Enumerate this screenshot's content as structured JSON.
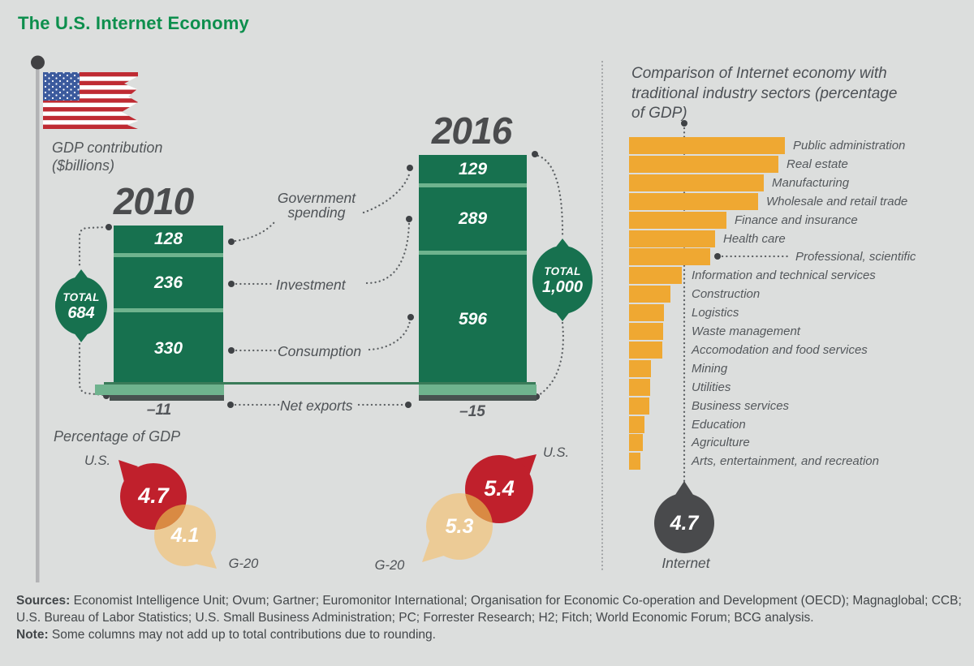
{
  "ui": {
    "title": "The U.S. Internet Economy",
    "gdp": {
      "label1": "GDP contribution",
      "label2": "($billions)",
      "total_word": "TOTAL",
      "y2010": {
        "year": "2010",
        "gov": "128",
        "inv": "236",
        "con": "330",
        "net": "–11",
        "total": "684"
      },
      "y2016": {
        "year": "2016",
        "gov": "129",
        "inv": "289",
        "con": "596",
        "net": "–15",
        "total": "1,000"
      },
      "flows": {
        "gov": "Government\nspending",
        "inv": "Investment",
        "con": "Consumption",
        "net": "Net exports"
      }
    },
    "pct": {
      "heading": "Percentage of GDP",
      "us": "U.S.",
      "g20": "G-20",
      "b2010": {
        "us": "4.7",
        "g20": "4.1"
      },
      "b2016": {
        "us": "5.4",
        "g20": "5.3"
      }
    },
    "sectors": {
      "title": "Comparison of Internet economy with traditional industry sectors (percentage of GDP)",
      "internet_value": "4.7",
      "internet_label": "Internet"
    },
    "footer": {
      "sources_label": "Sources:",
      "sources": " Economist Intelligence Unit; Ovum; Gartner; Euromonitor International; Organisation for Economic Co-operation and Development (OECD); Magnaglobal; CCB; U.S. Bureau of Labor Statistics; U.S. Small Business Administration; PC; Forrester Research; H2; Fitch; World Economic Forum; BCG analysis.",
      "note_label": "Note:",
      "note": " Some columns may not add up to total contributions due to rounding."
    }
  },
  "colors": {
    "title_green": "#0d8f4d",
    "bar_green": "#17714f",
    "separator_green": "#6fb38e",
    "axis_green": "#3a7b59",
    "net_exports_bar": "#485250",
    "sector_orange": "#efa832",
    "us_red": "#c0202c",
    "g20_tan": "#eccb96",
    "bubble_overlap": "#d98a43",
    "internet_charcoal": "#494a4c",
    "background": "#dcdedd"
  },
  "chart_data": [
    {
      "type": "bar",
      "subtype": "stacked-column",
      "title": "GDP contribution ($billions)",
      "unit": "$billions",
      "categories": [
        "2010",
        "2016"
      ],
      "series": [
        {
          "name": "Government spending",
          "values": [
            128,
            129
          ]
        },
        {
          "name": "Investment",
          "values": [
            236,
            289
          ]
        },
        {
          "name": "Consumption",
          "values": [
            330,
            596
          ]
        },
        {
          "name": "Net exports",
          "values": [
            -11,
            -15
          ]
        }
      ],
      "totals": [
        684,
        1000
      ]
    },
    {
      "type": "bar",
      "subtype": "horizontal",
      "title": "Comparison of Internet economy with traditional industry sectors (percentage of GDP)",
      "categories": [
        "Public administration",
        "Real estate",
        "Manufacturing",
        "Wholesale and retail trade",
        "Finance and insurance",
        "Health care",
        "Professional, scientific",
        "Information and technical services",
        "Construction",
        "Logistics",
        "Waste management",
        "Accomodation and food services",
        "Mining",
        "Utilities",
        "Business services",
        "Education",
        "Agriculture",
        "Arts, entertainment, and recreation"
      ],
      "values": [
        13.3,
        12.7,
        11.5,
        11.0,
        8.3,
        7.3,
        6.9,
        4.5,
        3.5,
        3.0,
        2.9,
        2.8,
        1.9,
        1.8,
        1.7,
        1.3,
        1.2,
        1.0
      ],
      "callout_index": 6,
      "reference": {
        "label": "Internet",
        "value": 4.7
      }
    },
    {
      "type": "bubble-comparison",
      "title": "Percentage of GDP",
      "groups": [
        {
          "category": "2010",
          "series": [
            {
              "name": "U.S.",
              "value": 4.7
            },
            {
              "name": "G-20",
              "value": 4.1
            }
          ]
        },
        {
          "category": "2016",
          "series": [
            {
              "name": "U.S.",
              "value": 5.4
            },
            {
              "name": "G-20",
              "value": 5.3
            }
          ]
        }
      ]
    }
  ]
}
